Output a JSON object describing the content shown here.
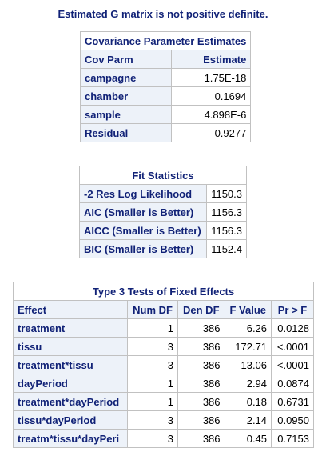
{
  "note": "Estimated G matrix is not positive definite.",
  "cov": {
    "title": "Covariance Parameter Estimates",
    "headers": [
      "Cov Parm",
      "Estimate"
    ],
    "rows": [
      {
        "parm": "campagne",
        "estimate": "1.75E-18"
      },
      {
        "parm": "chamber",
        "estimate": "0.1694"
      },
      {
        "parm": "sample",
        "estimate": "4.898E-6"
      },
      {
        "parm": "Residual",
        "estimate": "0.9277"
      }
    ]
  },
  "fit": {
    "title": "Fit Statistics",
    "rows": [
      {
        "label": "-2 Res Log Likelihood",
        "value": "1150.3"
      },
      {
        "label": "AIC (Smaller is Better)",
        "value": "1156.3"
      },
      {
        "label": "AICC (Smaller is Better)",
        "value": "1156.3"
      },
      {
        "label": "BIC (Smaller is Better)",
        "value": "1152.4"
      }
    ]
  },
  "tests": {
    "title": "Type 3 Tests of Fixed Effects",
    "headers": [
      "Effect",
      "Num DF",
      "Den DF",
      "F Value",
      "Pr > F"
    ],
    "rows": [
      {
        "effect": "treatment",
        "num_df": "1",
        "den_df": "386",
        "f_value": "6.26",
        "p": "0.0128"
      },
      {
        "effect": "tissu",
        "num_df": "3",
        "den_df": "386",
        "f_value": "172.71",
        "p": "<.0001"
      },
      {
        "effect": "treatment*tissu",
        "num_df": "3",
        "den_df": "386",
        "f_value": "13.06",
        "p": "<.0001"
      },
      {
        "effect": "dayPeriod",
        "num_df": "1",
        "den_df": "386",
        "f_value": "2.94",
        "p": "0.0874"
      },
      {
        "effect": "treatment*dayPeriod",
        "num_df": "1",
        "den_df": "386",
        "f_value": "0.18",
        "p": "0.6731"
      },
      {
        "effect": "tissu*dayPeriod",
        "num_df": "3",
        "den_df": "386",
        "f_value": "2.14",
        "p": "0.0950"
      },
      {
        "effect": "treatm*tissu*dayPeri",
        "num_df": "3",
        "den_df": "386",
        "f_value": "0.45",
        "p": "0.7153"
      }
    ]
  }
}
